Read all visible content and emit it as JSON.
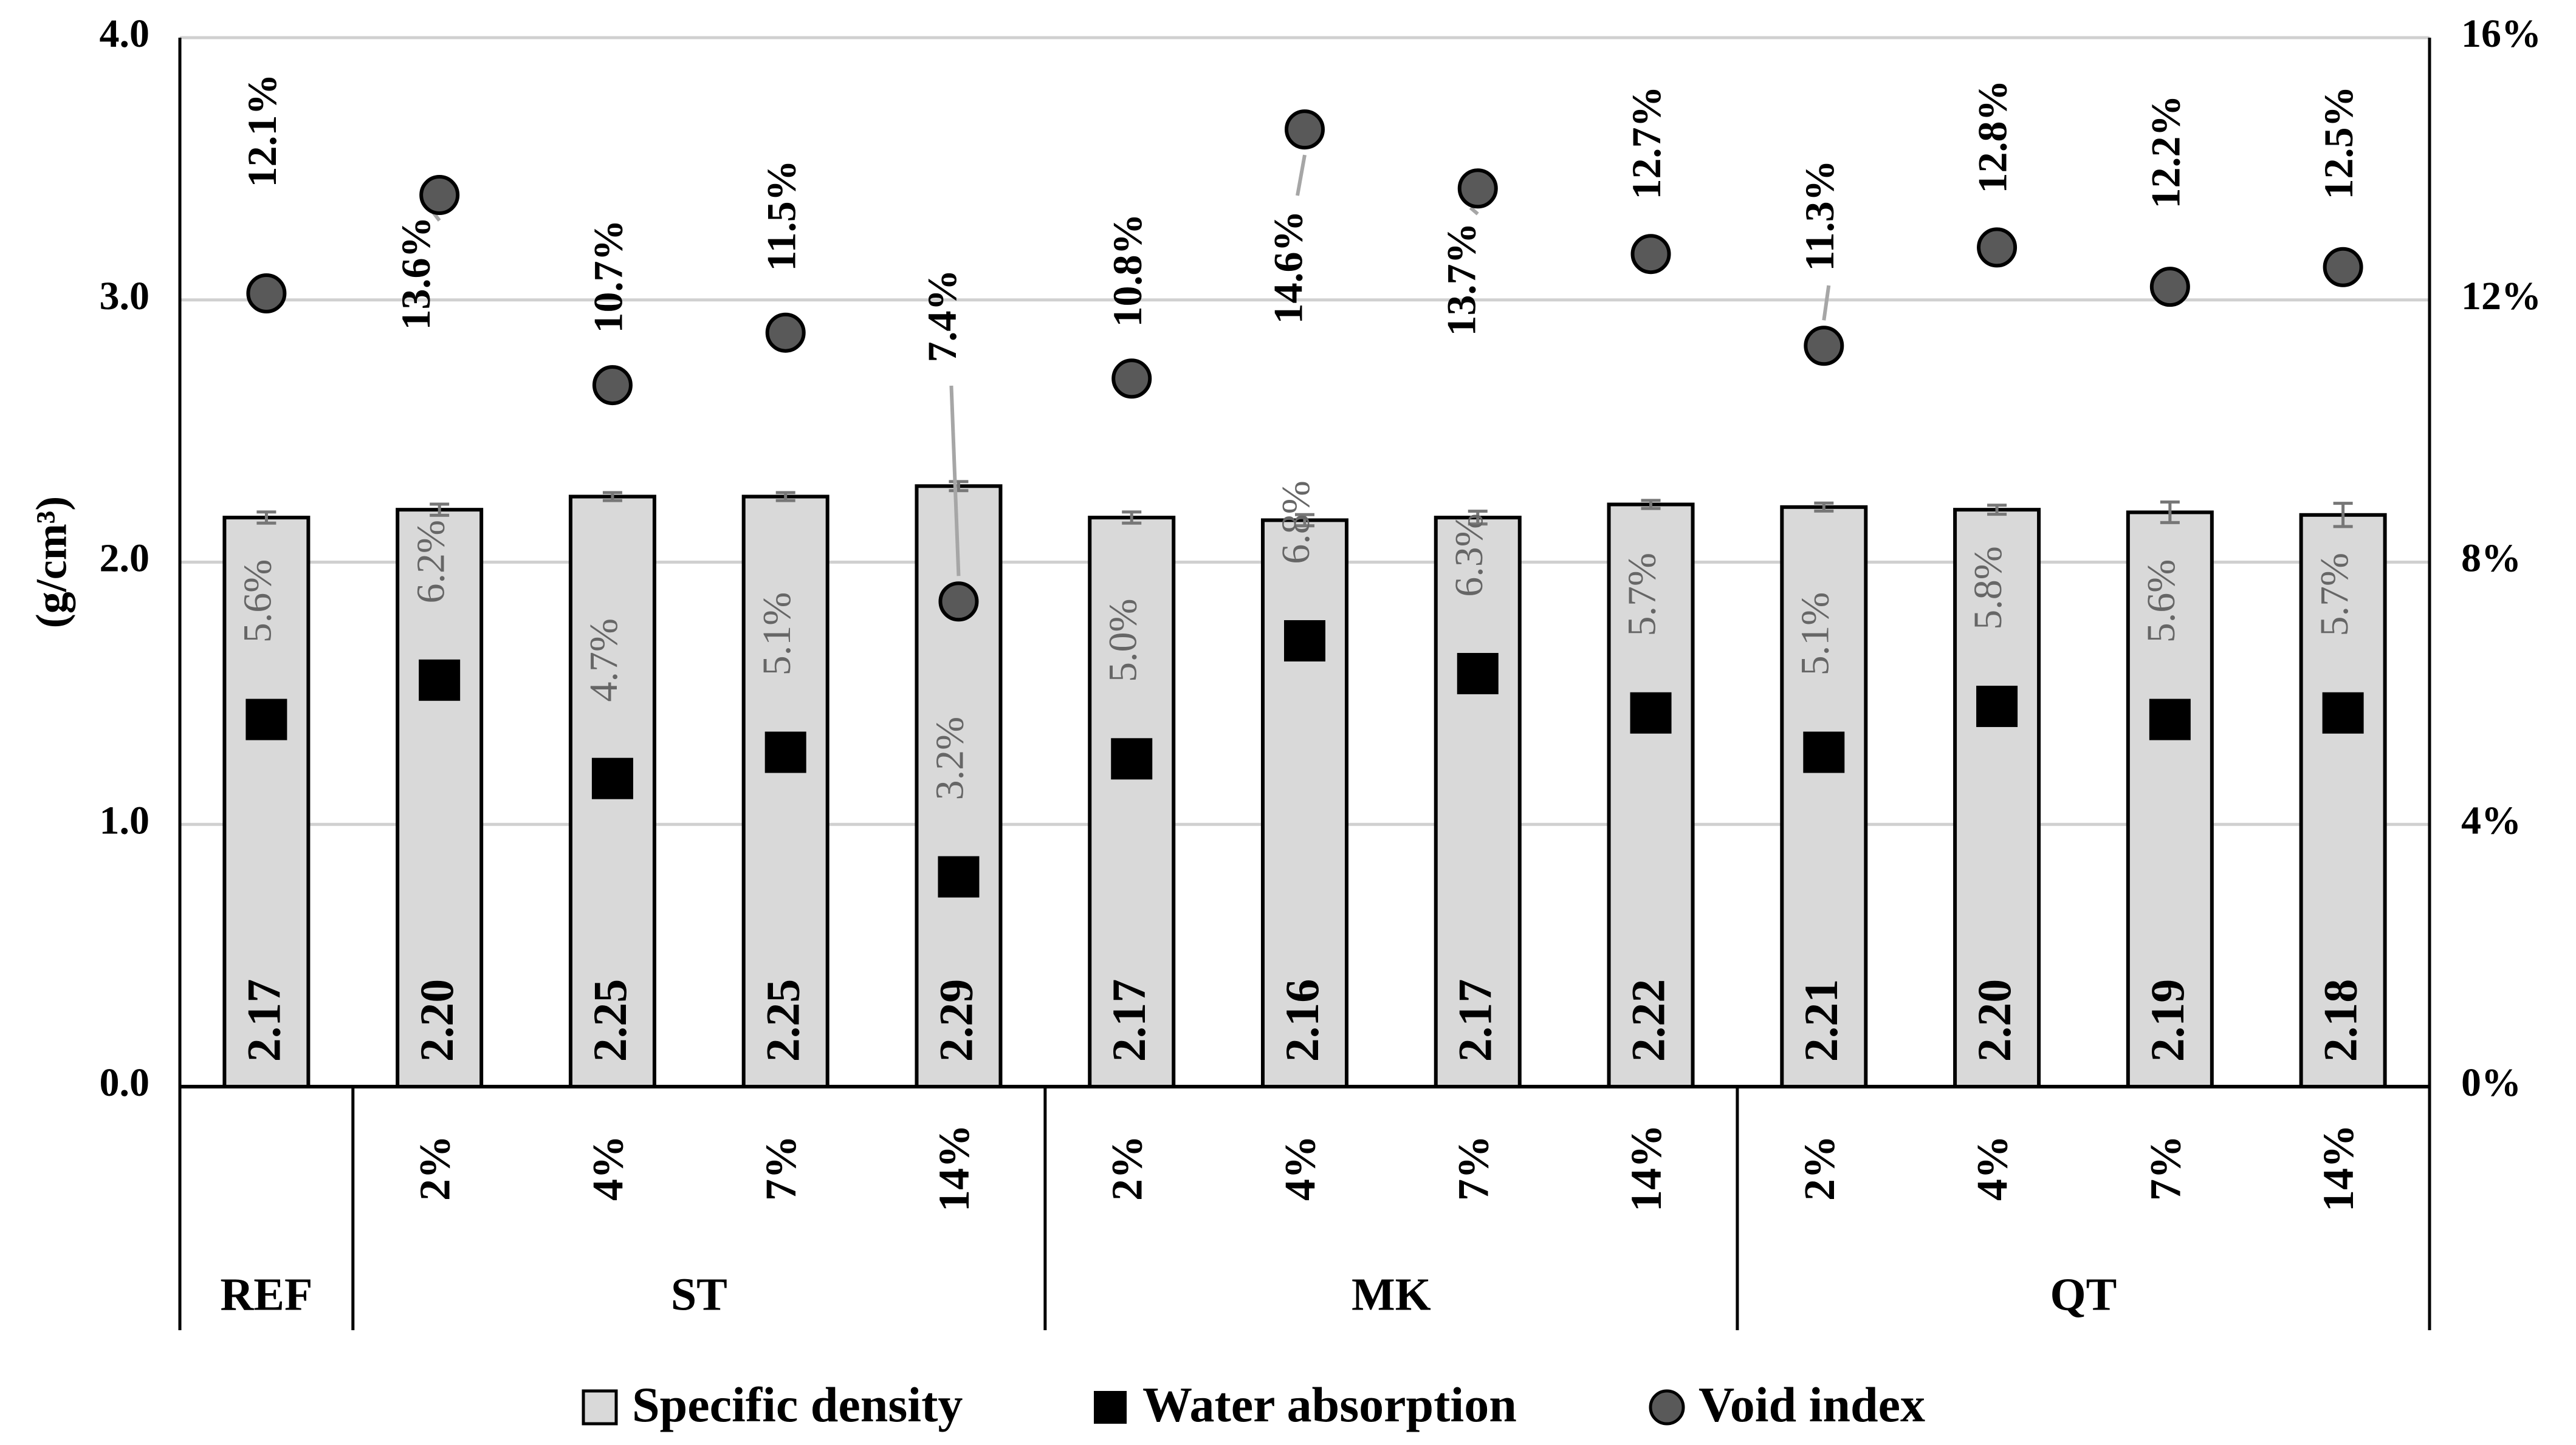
{
  "chart_data": {
    "type": "bar",
    "title": "",
    "ylabel": "(g/cm³)",
    "ylim": [
      0,
      4
    ],
    "yticks": [
      "0.0",
      "1.0",
      "2.0",
      "3.0",
      "4.0"
    ],
    "y2lim": [
      0,
      16
    ],
    "y2ticks": [
      "0%",
      "4%",
      "8%",
      "12%",
      "16%"
    ],
    "grid": true,
    "categories": [
      "",
      "2%",
      "4%",
      "7%",
      "14%",
      "2%",
      "4%",
      "7%",
      "14%",
      "2%",
      "4%",
      "7%",
      "14%"
    ],
    "groups": [
      {
        "label": "REF",
        "span": 1
      },
      {
        "label": "ST",
        "span": 4
      },
      {
        "label": "MK",
        "span": 4
      },
      {
        "label": "QT",
        "span": 4
      }
    ],
    "series": [
      {
        "name": "Specific density",
        "kind": "bar",
        "axis": "left",
        "color": "#d9d9d9",
        "values": [
          2.17,
          2.2,
          2.25,
          2.25,
          2.29,
          2.17,
          2.16,
          2.17,
          2.22,
          2.21,
          2.2,
          2.19,
          2.18
        ],
        "labels": [
          "2.17",
          "2.20",
          "2.25",
          "2.25",
          "2.29",
          "2.17",
          "2.16",
          "2.17",
          "2.22",
          "2.21",
          "2.20",
          "2.19",
          "2.18"
        ],
        "errors": [
          0.012,
          0.012,
          0.006,
          0.006,
          0.008,
          0.012,
          0.012,
          0.015,
          0.006,
          0.006,
          0.008,
          0.03,
          0.035
        ]
      },
      {
        "name": "Water absorption",
        "kind": "square",
        "axis": "right",
        "color": "#000000",
        "values": [
          5.6,
          6.2,
          4.7,
          5.1,
          3.2,
          5.0,
          6.8,
          6.3,
          5.7,
          5.1,
          5.8,
          5.6,
          5.7
        ],
        "labels": [
          "5.6%",
          "6.2%",
          "4.7%",
          "5.1%",
          "3.2%",
          "5.0%",
          "6.8%",
          "6.3%",
          "5.7%",
          "5.1%",
          "5.8%",
          "5.6%",
          "5.7%"
        ]
      },
      {
        "name": "Void index",
        "kind": "circle",
        "axis": "right",
        "color": "#595959",
        "values": [
          12.1,
          13.6,
          10.7,
          11.5,
          7.4,
          10.8,
          14.6,
          13.7,
          12.7,
          11.3,
          12.8,
          12.2,
          12.5
        ],
        "labels": [
          "12.1%",
          "13.6%",
          "10.7%",
          "11.5%",
          "7.4%",
          "10.8%",
          "14.6%",
          "13.7%",
          "12.7%",
          "11.3%",
          "12.8%",
          "12.2%",
          "12.5%"
        ]
      }
    ],
    "legend": {
      "position": "bottom",
      "items": [
        "Specific density",
        "Water absorption",
        "Void index"
      ]
    }
  }
}
